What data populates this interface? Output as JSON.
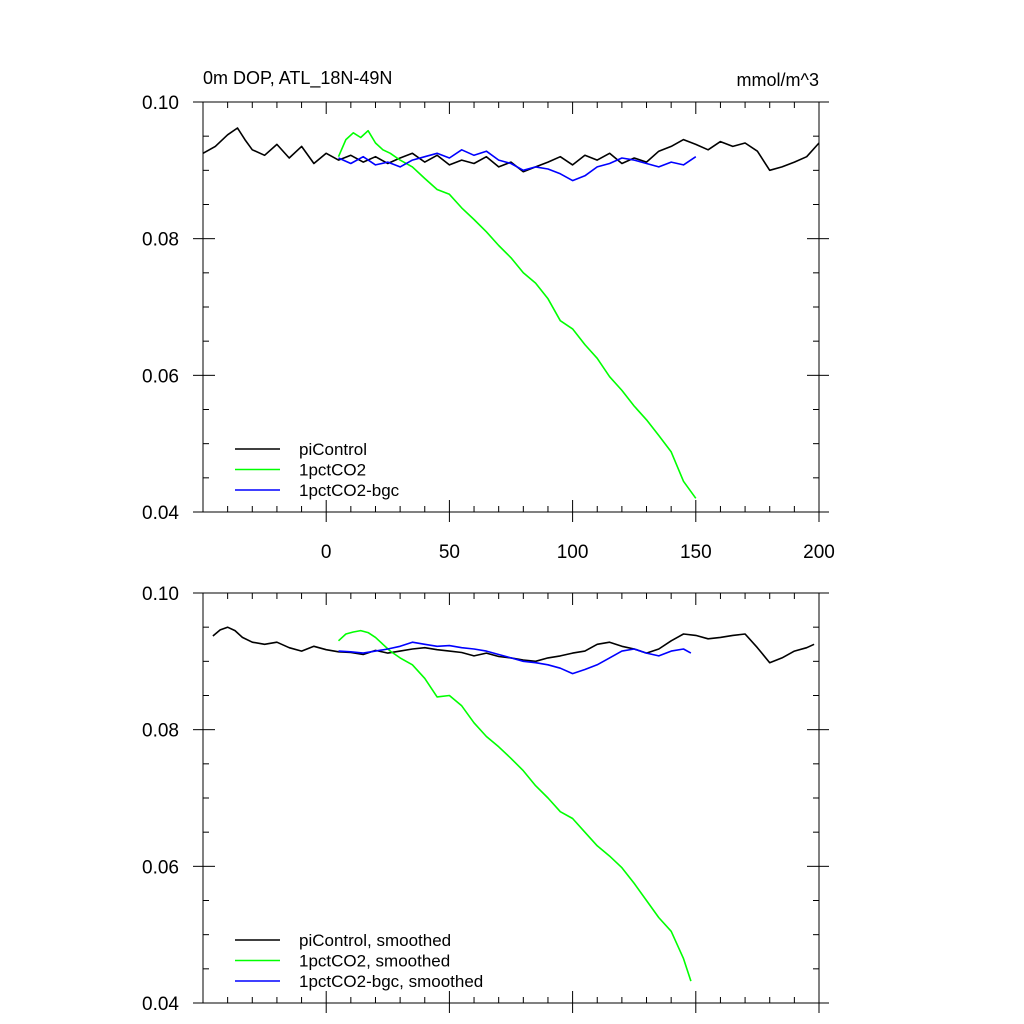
{
  "chart_data": [
    {
      "type": "line",
      "title": "0m DOP, ATL_18N-49N",
      "units": "mmol/m^3",
      "xlabel": "",
      "ylabel": "",
      "xlim": [
        -50,
        200
      ],
      "ylim": [
        0.04,
        0.1
      ],
      "xticks": [
        0,
        50,
        100,
        150,
        200
      ],
      "xtick_labels": [
        "0",
        "50",
        "100",
        "150",
        "200"
      ],
      "yticks": [
        0.04,
        0.06,
        0.08,
        0.1
      ],
      "ytick_labels": [
        "0.04",
        "0.06",
        "0.08",
        "0.10"
      ],
      "legend_position": "bottom-left",
      "series": [
        {
          "name": "piControl",
          "color": "#000000",
          "x": [
            -50,
            -45,
            -40,
            -36,
            -33,
            -30,
            -25,
            -20,
            -15,
            -10,
            -5,
            0,
            5,
            10,
            15,
            20,
            25,
            30,
            35,
            40,
            45,
            50,
            55,
            60,
            65,
            70,
            75,
            80,
            85,
            90,
            95,
            100,
            105,
            110,
            115,
            120,
            125,
            130,
            135,
            140,
            145,
            150,
            155,
            160,
            165,
            170,
            175,
            180,
            185,
            190,
            195,
            200
          ],
          "values": [
            0.0925,
            0.0935,
            0.0952,
            0.0962,
            0.0945,
            0.093,
            0.0922,
            0.0938,
            0.0918,
            0.0935,
            0.091,
            0.0925,
            0.0915,
            0.0922,
            0.0912,
            0.092,
            0.091,
            0.0918,
            0.0925,
            0.0912,
            0.0922,
            0.0908,
            0.0915,
            0.091,
            0.092,
            0.0905,
            0.0912,
            0.0898,
            0.0905,
            0.0912,
            0.092,
            0.0908,
            0.0922,
            0.0915,
            0.0925,
            0.091,
            0.0918,
            0.0912,
            0.0928,
            0.0935,
            0.0945,
            0.0938,
            0.093,
            0.0942,
            0.0935,
            0.094,
            0.0928,
            0.09,
            0.0905,
            0.0912,
            0.092,
            0.094
          ]
        },
        {
          "name": "1pctCO2",
          "color": "#00ff00",
          "x": [
            5,
            8,
            11,
            14,
            17,
            20,
            23,
            26,
            30,
            35,
            40,
            45,
            50,
            55,
            60,
            65,
            70,
            75,
            80,
            85,
            90,
            95,
            100,
            105,
            110,
            115,
            120,
            125,
            130,
            135,
            140,
            145,
            150
          ],
          "values": [
            0.092,
            0.0945,
            0.0955,
            0.0948,
            0.0958,
            0.094,
            0.093,
            0.0925,
            0.0915,
            0.0905,
            0.0888,
            0.0872,
            0.0865,
            0.0845,
            0.0828,
            0.081,
            0.079,
            0.0772,
            0.075,
            0.0735,
            0.0712,
            0.068,
            0.0668,
            0.0645,
            0.0625,
            0.0598,
            0.0578,
            0.0555,
            0.0535,
            0.0512,
            0.0488,
            0.0445,
            0.042
          ]
        },
        {
          "name": "1pctCO2-bgc",
          "color": "#0000ff",
          "x": [
            5,
            10,
            15,
            20,
            25,
            30,
            35,
            40,
            45,
            50,
            55,
            60,
            65,
            70,
            75,
            80,
            85,
            90,
            95,
            100,
            105,
            110,
            115,
            120,
            125,
            130,
            135,
            140,
            145,
            150
          ],
          "values": [
            0.0918,
            0.091,
            0.092,
            0.0908,
            0.0912,
            0.0905,
            0.0915,
            0.092,
            0.0925,
            0.0918,
            0.093,
            0.0922,
            0.0928,
            0.0915,
            0.091,
            0.09,
            0.0905,
            0.0902,
            0.0895,
            0.0885,
            0.0892,
            0.0905,
            0.091,
            0.0918,
            0.0915,
            0.091,
            0.0905,
            0.0912,
            0.0908,
            0.092
          ]
        }
      ]
    },
    {
      "type": "line",
      "title": "",
      "xlabel": "",
      "ylabel": "",
      "xlim": [
        -50,
        200
      ],
      "ylim": [
        0.04,
        0.1
      ],
      "xticks": [
        0,
        50,
        100,
        150,
        200
      ],
      "yticks": [
        0.04,
        0.06,
        0.08,
        0.1
      ],
      "ytick_labels": [
        "0.04",
        "0.06",
        "0.08",
        "0.10"
      ],
      "legend_position": "bottom-left",
      "series": [
        {
          "name": "piControl, smoothed",
          "color": "#000000",
          "x": [
            -46,
            -43,
            -40,
            -37,
            -34,
            -30,
            -25,
            -20,
            -15,
            -10,
            -5,
            0,
            5,
            10,
            15,
            20,
            25,
            30,
            35,
            40,
            45,
            50,
            55,
            60,
            65,
            70,
            75,
            80,
            85,
            90,
            95,
            100,
            105,
            110,
            115,
            120,
            125,
            130,
            135,
            140,
            145,
            150,
            155,
            160,
            165,
            170,
            175,
            180,
            185,
            190,
            195,
            198
          ],
          "values": [
            0.0937,
            0.0946,
            0.095,
            0.0945,
            0.0935,
            0.0928,
            0.0925,
            0.0928,
            0.092,
            0.0915,
            0.0922,
            0.0917,
            0.0914,
            0.0913,
            0.091,
            0.0916,
            0.0912,
            0.0915,
            0.0918,
            0.092,
            0.0917,
            0.0915,
            0.0913,
            0.0908,
            0.0912,
            0.0907,
            0.0905,
            0.0902,
            0.09,
            0.0905,
            0.0908,
            0.0912,
            0.0915,
            0.0925,
            0.0928,
            0.0922,
            0.0918,
            0.0912,
            0.0918,
            0.093,
            0.094,
            0.0938,
            0.0933,
            0.0935,
            0.0938,
            0.094,
            0.092,
            0.0898,
            0.0905,
            0.0915,
            0.092,
            0.0925
          ]
        },
        {
          "name": "1pctCO2, smoothed",
          "color": "#00ff00",
          "x": [
            5,
            8,
            11,
            14,
            17,
            20,
            23,
            26,
            30,
            35,
            40,
            45,
            50,
            55,
            60,
            65,
            70,
            75,
            80,
            85,
            90,
            95,
            100,
            105,
            110,
            115,
            120,
            125,
            130,
            135,
            140,
            145,
            148
          ],
          "values": [
            0.093,
            0.094,
            0.0943,
            0.0945,
            0.0942,
            0.0935,
            0.0925,
            0.0915,
            0.0905,
            0.0895,
            0.0875,
            0.0848,
            0.085,
            0.0835,
            0.081,
            0.079,
            0.0775,
            0.0758,
            0.074,
            0.0718,
            0.07,
            0.068,
            0.067,
            0.065,
            0.063,
            0.0615,
            0.0598,
            0.0575,
            0.055,
            0.0525,
            0.0505,
            0.0465,
            0.0432
          ]
        },
        {
          "name": "1pctCO2-bgc, smoothed",
          "color": "#0000ff",
          "x": [
            5,
            10,
            15,
            20,
            25,
            30,
            35,
            40,
            45,
            50,
            55,
            60,
            65,
            70,
            75,
            80,
            85,
            90,
            95,
            100,
            105,
            110,
            115,
            120,
            125,
            130,
            135,
            140,
            145,
            148
          ],
          "values": [
            0.0915,
            0.0914,
            0.0912,
            0.0915,
            0.0918,
            0.0922,
            0.0928,
            0.0925,
            0.0922,
            0.0923,
            0.092,
            0.0918,
            0.0915,
            0.091,
            0.0905,
            0.09,
            0.0898,
            0.0895,
            0.089,
            0.0882,
            0.0888,
            0.0895,
            0.0905,
            0.0915,
            0.0918,
            0.0912,
            0.0908,
            0.0915,
            0.0918,
            0.0912
          ]
        }
      ]
    }
  ]
}
